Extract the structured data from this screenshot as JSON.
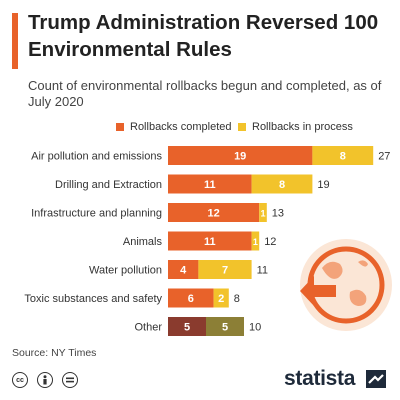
{
  "header": {
    "title": "Trump Administration Reversed 100 Environmental Rules",
    "subtitle": "Count of environmental rollbacks begun and completed, as of July 2020"
  },
  "colors": {
    "accent": "#e8622a",
    "completed": "#e8622a",
    "in_process": "#f2c32b",
    "other_completed": "#8a3b2e",
    "other_in_process": "#8c7f36",
    "logo": "#1e2a3a"
  },
  "chart_data": {
    "type": "bar",
    "orientation": "horizontal",
    "stacked": true,
    "categories": [
      "Air pollution and emissions",
      "Drilling and Extraction",
      "Infrastructure and planning",
      "Animals",
      "Water pollution",
      "Toxic substances and safety",
      "Other"
    ],
    "series": [
      {
        "name": "Rollbacks completed",
        "values": [
          19,
          11,
          12,
          11,
          4,
          6,
          5
        ]
      },
      {
        "name": "Rollbacks in process",
        "values": [
          8,
          8,
          1,
          1,
          7,
          2,
          5
        ]
      }
    ],
    "totals": [
      27,
      19,
      13,
      12,
      11,
      8,
      10
    ],
    "legend_position": "top",
    "grid": false
  },
  "footer": {
    "source": "Source: NY Times",
    "logo_text": "statista",
    "license_icons": [
      "creative-commons-icon",
      "attribution-icon",
      "no-derivatives-icon"
    ]
  },
  "decoration": {
    "icon": "globe-with-arrow-icon"
  }
}
